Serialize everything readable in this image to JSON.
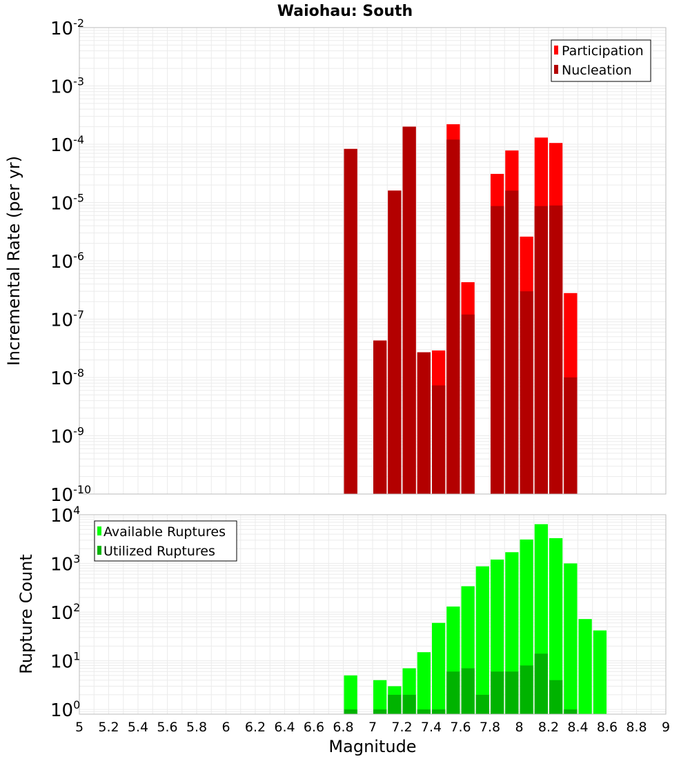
{
  "title": "Waiohau: South",
  "colors": {
    "participation": "#ff0000",
    "nucleation": "#b30000",
    "available": "#00ff00",
    "utilized": "#00b300",
    "plot_border": "#bbbbbb",
    "grid": "#ebebeb"
  },
  "chart_data": [
    {
      "type": "bar",
      "name": "Incremental Rate",
      "xlabel": "Magnitude",
      "ylabel": "Incremental Rate (per yr)",
      "xlim": [
        5,
        9
      ],
      "ylim": [
        1e-10,
        0.01
      ],
      "yscale": "log",
      "grid": true,
      "legend_position": "top-right",
      "x_ticks": [
        "5",
        "5.2",
        "5.4",
        "5.6",
        "5.8",
        "6",
        "6.2",
        "6.4",
        "6.6",
        "6.8",
        "7",
        "7.2",
        "7.4",
        "7.6",
        "7.8",
        "8",
        "8.2",
        "8.4",
        "8.6",
        "8.8",
        "9"
      ],
      "y_ticks": [
        {
          "base": "10",
          "exp": "-2"
        },
        {
          "base": "10",
          "exp": "-3"
        },
        {
          "base": "10",
          "exp": "-4"
        },
        {
          "base": "10",
          "exp": "-5"
        },
        {
          "base": "10",
          "exp": "-6"
        },
        {
          "base": "10",
          "exp": "-7"
        },
        {
          "base": "10",
          "exp": "-8"
        },
        {
          "base": "10",
          "exp": "-9"
        },
        {
          "base": "10",
          "exp": "-10"
        }
      ],
      "x": [
        6.85,
        7.05,
        7.15,
        7.25,
        7.35,
        7.45,
        7.55,
        7.65,
        7.85,
        7.95,
        8.05,
        8.15,
        8.25,
        8.35
      ],
      "series": [
        {
          "name": "Participation",
          "values": [
            8.3e-05,
            4.3e-08,
            1.6e-05,
            0.0002,
            2.7e-08,
            2.9e-08,
            0.00022,
            4.3e-07,
            3.1e-05,
            7.8e-05,
            2.6e-06,
            0.00013,
            0.000105,
            2.8e-07
          ]
        },
        {
          "name": "Nucleation",
          "values": [
            8.3e-05,
            4.3e-08,
            1.6e-05,
            0.0002,
            2.7e-08,
            7.3e-09,
            0.00012,
            1.2e-07,
            8.7e-06,
            1.6e-05,
            3e-07,
            8.7e-06,
            8.9e-06,
            1e-08
          ]
        }
      ]
    },
    {
      "type": "bar",
      "name": "Rupture Count",
      "xlabel": "Magnitude",
      "ylabel": "Rupture Count",
      "xlim": [
        5,
        9
      ],
      "ylim": [
        0.8,
        10000
      ],
      "yscale": "log",
      "grid": true,
      "legend_position": "top-left",
      "y_ticks": [
        {
          "base": "10",
          "exp": "4"
        },
        {
          "base": "10",
          "exp": "3"
        },
        {
          "base": "10",
          "exp": "2"
        },
        {
          "base": "10",
          "exp": "1"
        },
        {
          "base": "10",
          "exp": "0"
        }
      ],
      "x": [
        6.85,
        7.05,
        7.15,
        7.25,
        7.35,
        7.45,
        7.55,
        7.65,
        7.75,
        7.85,
        7.95,
        8.05,
        8.15,
        8.25,
        8.35,
        8.45,
        8.55
      ],
      "series": [
        {
          "name": "Available Ruptures",
          "values": [
            5,
            4,
            3,
            7,
            15,
            60,
            130,
            340,
            870,
            1200,
            1700,
            3100,
            6400,
            3300,
            1000,
            72,
            42
          ]
        },
        {
          "name": "Utilized Ruptures",
          "values": [
            1,
            1,
            2,
            2,
            1,
            1,
            6,
            7,
            2,
            6,
            6,
            8,
            14,
            4,
            1,
            null,
            null
          ]
        }
      ]
    }
  ]
}
